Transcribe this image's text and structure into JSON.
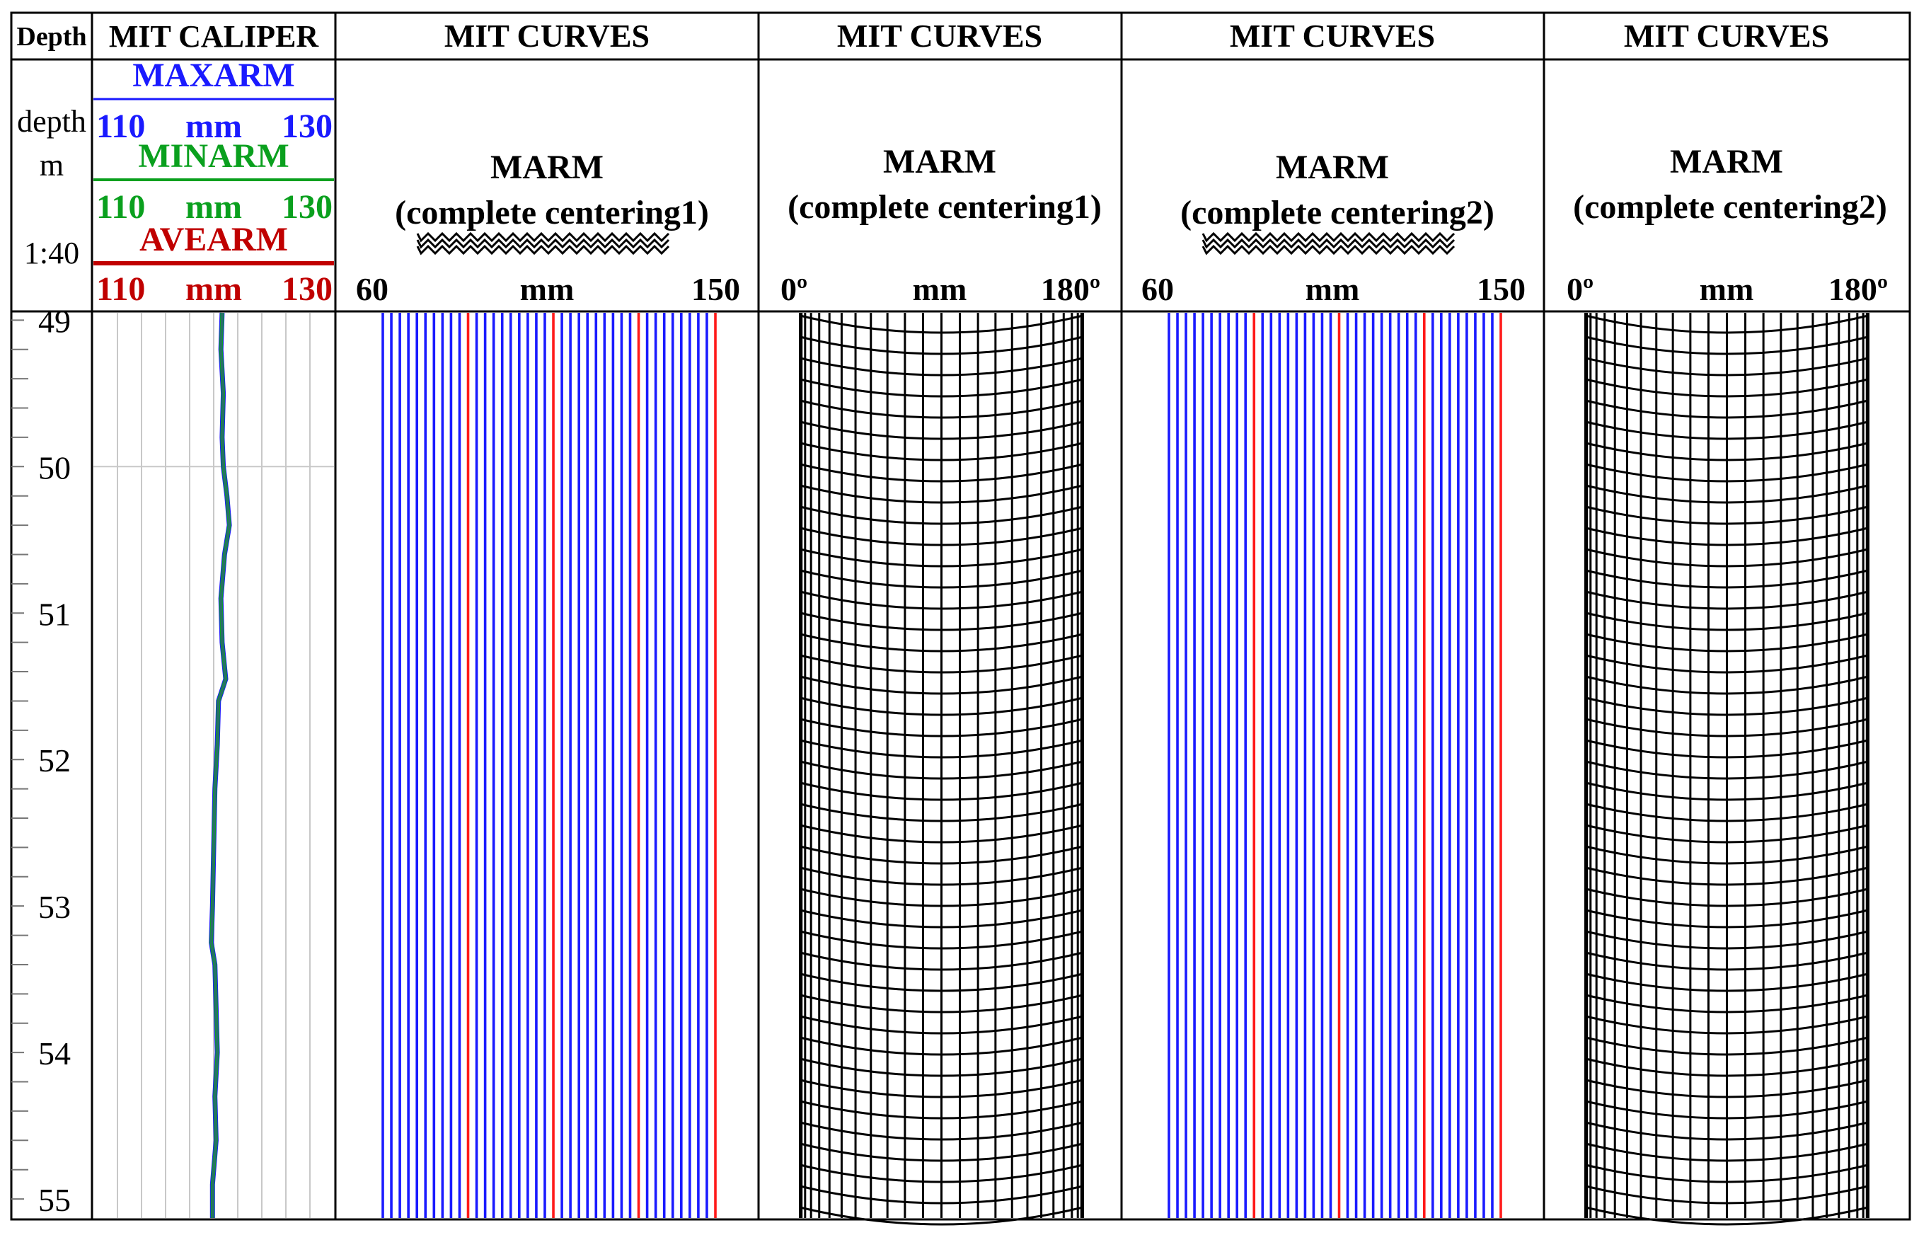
{
  "tracks": {
    "depth": {
      "title": "Depth",
      "label_name": "depth",
      "label_unit": "m",
      "label_scale": "1:40"
    },
    "caliper": {
      "title": "MIT CALIPER",
      "curves": [
        {
          "name": "MAXARM",
          "min": "110",
          "unit": "mm",
          "max": "130",
          "color": "#1a1aff"
        },
        {
          "name": "MINARM",
          "min": "110",
          "unit": "mm",
          "max": "130",
          "color": "#0aa01e"
        },
        {
          "name": "AVEARM",
          "min": "110",
          "unit": "mm",
          "max": "130",
          "color": "#c00000"
        }
      ]
    },
    "curves": [
      {
        "title": "MIT CURVES",
        "line1": "MARM",
        "line2": "(complete centering1)",
        "scale_min": "60",
        "scale_unit": "mm",
        "scale_max": "150",
        "style": "flat",
        "legend_glyph": true
      },
      {
        "title": "MIT CURVES",
        "line1": "MARM",
        "line2": "(complete centering1)",
        "scale_min": "0º",
        "scale_unit": "mm",
        "scale_max": "180º",
        "style": "cylinder",
        "legend_glyph": false
      },
      {
        "title": "MIT CURVES",
        "line1": "MARM",
        "line2": "(complete centering2)",
        "scale_min": "60",
        "scale_unit": "mm",
        "scale_max": "150",
        "style": "flat",
        "legend_glyph": true
      },
      {
        "title": "MIT CURVES",
        "line1": "MARM",
        "line2": "(complete centering2)",
        "scale_min": "0º",
        "scale_unit": "mm",
        "scale_max": "180º",
        "style": "cylinder",
        "legend_glyph": false
      }
    ]
  },
  "depth_ticks": [
    "49",
    "50",
    "51",
    "52",
    "53",
    "54",
    "55"
  ],
  "depth_range_m": [
    48.95,
    55.13
  ],
  "caliper_trace_mm": [
    [
      48.95,
      120.7
    ],
    [
      49.2,
      120.6
    ],
    [
      49.5,
      120.8
    ],
    [
      49.8,
      120.7
    ],
    [
      50.0,
      120.8
    ],
    [
      50.2,
      121.1
    ],
    [
      50.4,
      121.3
    ],
    [
      50.6,
      120.9
    ],
    [
      50.9,
      120.6
    ],
    [
      51.2,
      120.7
    ],
    [
      51.45,
      121.0
    ],
    [
      51.6,
      120.4
    ],
    [
      51.9,
      120.3
    ],
    [
      52.2,
      120.1
    ],
    [
      52.6,
      120.0
    ],
    [
      53.0,
      119.9
    ],
    [
      53.25,
      119.8
    ],
    [
      53.4,
      120.1
    ],
    [
      53.7,
      120.2
    ],
    [
      54.0,
      120.3
    ],
    [
      54.3,
      120.1
    ],
    [
      54.6,
      120.2
    ],
    [
      54.9,
      119.9
    ],
    [
      55.13,
      119.9
    ]
  ],
  "colors": {
    "blue_line": "#1a1aff",
    "red_line": "#ff1a1a",
    "grid": "#c8c8c8",
    "caliper_trace": "#2a6e6a",
    "frame": "#000000"
  }
}
